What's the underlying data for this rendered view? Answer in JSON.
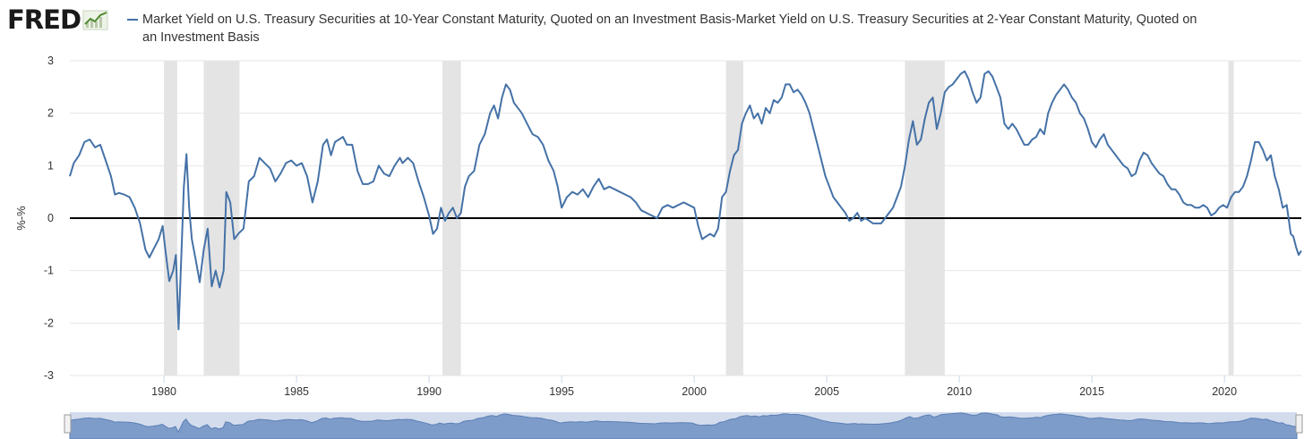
{
  "header": {
    "logo_text": "FRED",
    "logo_icon": "chart-line-icon",
    "legend_label": "Market Yield on U.S. Treasury Securities at 10-Year Constant Maturity, Quoted on an Investment Basis-Market Yield on U.S. Treasury Securities at 2-Year Constant Maturity, Quoted on an Investment Basis"
  },
  "colors": {
    "series": "#4572a7",
    "recession": "#e4e4e4",
    "zero_line": "#000000",
    "grid": "#e6e6e6",
    "navigator_fill": "#7e9cc9",
    "navigator_bg": "#d3dced"
  },
  "chart_data": {
    "type": "line",
    "title": "",
    "xlabel": "",
    "ylabel": "%-%",
    "xlim": [
      1976.45,
      2022.9
    ],
    "ylim": [
      -3,
      3
    ],
    "x_ticks": [
      "1980",
      "1985",
      "1990",
      "1995",
      "2000",
      "2005",
      "2010",
      "2015",
      "2020"
    ],
    "y_ticks": [
      "3",
      "2",
      "1",
      "0",
      "-1",
      "-2",
      "-3"
    ],
    "grid": "horizontal",
    "zero_line": true,
    "legend_position": "top",
    "recessions": [
      [
        1980.0,
        1980.5
      ],
      [
        1981.5,
        1982.85
      ],
      [
        1990.5,
        1991.2
      ],
      [
        2001.2,
        2001.85
      ],
      [
        2007.95,
        2009.45
      ],
      [
        2020.15,
        2020.35
      ]
    ],
    "series": [
      {
        "name": "Market Yield on U.S. Treasury Securities at 10-Year Constant Maturity, Quoted on an Investment Basis-Market Yield on U.S. Treasury Securities at 2-Year Constant Maturity, Quoted on an Investment Basis",
        "points": [
          [
            1976.45,
            0.8
          ],
          [
            1976.6,
            1.05
          ],
          [
            1976.8,
            1.2
          ],
          [
            1977.0,
            1.45
          ],
          [
            1977.2,
            1.5
          ],
          [
            1977.4,
            1.35
          ],
          [
            1977.6,
            1.4
          ],
          [
            1977.8,
            1.1
          ],
          [
            1978.0,
            0.8
          ],
          [
            1978.15,
            0.45
          ],
          [
            1978.3,
            0.48
          ],
          [
            1978.5,
            0.45
          ],
          [
            1978.7,
            0.4
          ],
          [
            1978.9,
            0.2
          ],
          [
            1979.1,
            -0.1
          ],
          [
            1979.3,
            -0.6
          ],
          [
            1979.45,
            -0.75
          ],
          [
            1979.6,
            -0.6
          ],
          [
            1979.8,
            -0.4
          ],
          [
            1979.95,
            -0.15
          ],
          [
            1980.05,
            -0.6
          ],
          [
            1980.2,
            -1.2
          ],
          [
            1980.35,
            -1.0
          ],
          [
            1980.45,
            -0.7
          ],
          [
            1980.55,
            -2.12
          ],
          [
            1980.65,
            -0.8
          ],
          [
            1980.75,
            0.6
          ],
          [
            1980.85,
            1.22
          ],
          [
            1980.95,
            0.2
          ],
          [
            1981.05,
            -0.4
          ],
          [
            1981.2,
            -0.8
          ],
          [
            1981.35,
            -1.22
          ],
          [
            1981.5,
            -0.6
          ],
          [
            1981.65,
            -0.2
          ],
          [
            1981.8,
            -1.3
          ],
          [
            1981.95,
            -1.0
          ],
          [
            1982.1,
            -1.32
          ],
          [
            1982.25,
            -1.0
          ],
          [
            1982.35,
            0.5
          ],
          [
            1982.5,
            0.3
          ],
          [
            1982.65,
            -0.4
          ],
          [
            1982.8,
            -0.3
          ],
          [
            1983.0,
            -0.2
          ],
          [
            1983.2,
            0.7
          ],
          [
            1983.4,
            0.8
          ],
          [
            1983.6,
            1.15
          ],
          [
            1983.8,
            1.05
          ],
          [
            1984.0,
            0.95
          ],
          [
            1984.2,
            0.7
          ],
          [
            1984.4,
            0.85
          ],
          [
            1984.6,
            1.05
          ],
          [
            1984.8,
            1.1
          ],
          [
            1985.0,
            1.0
          ],
          [
            1985.2,
            1.05
          ],
          [
            1985.4,
            0.8
          ],
          [
            1985.6,
            0.3
          ],
          [
            1985.8,
            0.7
          ],
          [
            1986.0,
            1.4
          ],
          [
            1986.15,
            1.5
          ],
          [
            1986.3,
            1.2
          ],
          [
            1986.45,
            1.45
          ],
          [
            1986.6,
            1.5
          ],
          [
            1986.75,
            1.55
          ],
          [
            1986.9,
            1.4
          ],
          [
            1987.1,
            1.4
          ],
          [
            1987.3,
            0.9
          ],
          [
            1987.5,
            0.65
          ],
          [
            1987.7,
            0.65
          ],
          [
            1987.9,
            0.7
          ],
          [
            1988.1,
            1.0
          ],
          [
            1988.3,
            0.85
          ],
          [
            1988.5,
            0.8
          ],
          [
            1988.7,
            1.0
          ],
          [
            1988.9,
            1.15
          ],
          [
            1989.0,
            1.05
          ],
          [
            1989.2,
            1.15
          ],
          [
            1989.4,
            1.05
          ],
          [
            1989.6,
            0.7
          ],
          [
            1989.8,
            0.4
          ],
          [
            1990.0,
            0.05
          ],
          [
            1990.15,
            -0.3
          ],
          [
            1990.3,
            -0.2
          ],
          [
            1990.45,
            0.2
          ],
          [
            1990.6,
            -0.05
          ],
          [
            1990.75,
            0.1
          ],
          [
            1990.9,
            0.2
          ],
          [
            1991.05,
            0.0
          ],
          [
            1991.2,
            0.1
          ],
          [
            1991.35,
            0.6
          ],
          [
            1991.5,
            0.8
          ],
          [
            1991.7,
            0.9
          ],
          [
            1991.9,
            1.4
          ],
          [
            1992.1,
            1.6
          ],
          [
            1992.3,
            2.0
          ],
          [
            1992.45,
            2.15
          ],
          [
            1992.6,
            1.9
          ],
          [
            1992.75,
            2.3
          ],
          [
            1992.9,
            2.55
          ],
          [
            1993.05,
            2.45
          ],
          [
            1993.2,
            2.2
          ],
          [
            1993.35,
            2.1
          ],
          [
            1993.5,
            2.0
          ],
          [
            1993.7,
            1.8
          ],
          [
            1993.9,
            1.6
          ],
          [
            1994.1,
            1.55
          ],
          [
            1994.3,
            1.4
          ],
          [
            1994.5,
            1.1
          ],
          [
            1994.7,
            0.9
          ],
          [
            1994.85,
            0.6
          ],
          [
            1995.0,
            0.2
          ],
          [
            1995.2,
            0.4
          ],
          [
            1995.4,
            0.5
          ],
          [
            1995.6,
            0.45
          ],
          [
            1995.8,
            0.55
          ],
          [
            1996.0,
            0.4
          ],
          [
            1996.2,
            0.6
          ],
          [
            1996.4,
            0.75
          ],
          [
            1996.6,
            0.55
          ],
          [
            1996.8,
            0.6
          ],
          [
            1997.0,
            0.55
          ],
          [
            1997.2,
            0.5
          ],
          [
            1997.4,
            0.45
          ],
          [
            1997.6,
            0.4
          ],
          [
            1997.8,
            0.3
          ],
          [
            1998.0,
            0.15
          ],
          [
            1998.2,
            0.1
          ],
          [
            1998.4,
            0.05
          ],
          [
            1998.6,
            0.0
          ],
          [
            1998.8,
            0.2
          ],
          [
            1999.0,
            0.25
          ],
          [
            1999.2,
            0.2
          ],
          [
            1999.4,
            0.25
          ],
          [
            1999.6,
            0.3
          ],
          [
            1999.8,
            0.25
          ],
          [
            2000.0,
            0.2
          ],
          [
            2000.15,
            -0.15
          ],
          [
            2000.3,
            -0.4
          ],
          [
            2000.45,
            -0.35
          ],
          [
            2000.6,
            -0.3
          ],
          [
            2000.75,
            -0.35
          ],
          [
            2000.9,
            -0.2
          ],
          [
            2001.05,
            0.4
          ],
          [
            2001.2,
            0.5
          ],
          [
            2001.35,
            0.9
          ],
          [
            2001.5,
            1.2
          ],
          [
            2001.65,
            1.3
          ],
          [
            2001.8,
            1.8
          ],
          [
            2001.95,
            2.0
          ],
          [
            2002.1,
            2.15
          ],
          [
            2002.25,
            1.9
          ],
          [
            2002.4,
            2.0
          ],
          [
            2002.55,
            1.8
          ],
          [
            2002.7,
            2.1
          ],
          [
            2002.85,
            2.0
          ],
          [
            2003.0,
            2.25
          ],
          [
            2003.15,
            2.2
          ],
          [
            2003.3,
            2.3
          ],
          [
            2003.45,
            2.55
          ],
          [
            2003.6,
            2.55
          ],
          [
            2003.75,
            2.4
          ],
          [
            2003.9,
            2.45
          ],
          [
            2004.05,
            2.35
          ],
          [
            2004.2,
            2.2
          ],
          [
            2004.35,
            2.0
          ],
          [
            2004.5,
            1.7
          ],
          [
            2004.65,
            1.4
          ],
          [
            2004.8,
            1.1
          ],
          [
            2004.95,
            0.8
          ],
          [
            2005.1,
            0.6
          ],
          [
            2005.25,
            0.4
          ],
          [
            2005.4,
            0.3
          ],
          [
            2005.55,
            0.2
          ],
          [
            2005.7,
            0.1
          ],
          [
            2005.85,
            -0.05
          ],
          [
            2006.0,
            0.0
          ],
          [
            2006.15,
            0.1
          ],
          [
            2006.3,
            -0.05
          ],
          [
            2006.45,
            0.0
          ],
          [
            2006.6,
            -0.05
          ],
          [
            2006.75,
            -0.1
          ],
          [
            2006.9,
            -0.1
          ],
          [
            2007.05,
            -0.1
          ],
          [
            2007.2,
            0.0
          ],
          [
            2007.35,
            0.1
          ],
          [
            2007.5,
            0.2
          ],
          [
            2007.65,
            0.4
          ],
          [
            2007.8,
            0.6
          ],
          [
            2007.95,
            1.0
          ],
          [
            2008.1,
            1.5
          ],
          [
            2008.25,
            1.85
          ],
          [
            2008.4,
            1.4
          ],
          [
            2008.55,
            1.5
          ],
          [
            2008.7,
            1.9
          ],
          [
            2008.85,
            2.2
          ],
          [
            2009.0,
            2.3
          ],
          [
            2009.15,
            1.7
          ],
          [
            2009.3,
            2.0
          ],
          [
            2009.45,
            2.4
          ],
          [
            2009.6,
            2.5
          ],
          [
            2009.75,
            2.55
          ],
          [
            2009.9,
            2.65
          ],
          [
            2010.05,
            2.75
          ],
          [
            2010.2,
            2.8
          ],
          [
            2010.35,
            2.65
          ],
          [
            2010.5,
            2.4
          ],
          [
            2010.65,
            2.2
          ],
          [
            2010.8,
            2.3
          ],
          [
            2010.95,
            2.75
          ],
          [
            2011.1,
            2.8
          ],
          [
            2011.25,
            2.7
          ],
          [
            2011.4,
            2.5
          ],
          [
            2011.55,
            2.3
          ],
          [
            2011.7,
            1.8
          ],
          [
            2011.85,
            1.7
          ],
          [
            2012.0,
            1.8
          ],
          [
            2012.15,
            1.7
          ],
          [
            2012.3,
            1.55
          ],
          [
            2012.45,
            1.4
          ],
          [
            2012.6,
            1.4
          ],
          [
            2012.75,
            1.5
          ],
          [
            2012.9,
            1.55
          ],
          [
            2013.05,
            1.7
          ],
          [
            2013.2,
            1.6
          ],
          [
            2013.35,
            2.0
          ],
          [
            2013.5,
            2.2
          ],
          [
            2013.65,
            2.35
          ],
          [
            2013.8,
            2.45
          ],
          [
            2013.95,
            2.55
          ],
          [
            2014.1,
            2.45
          ],
          [
            2014.25,
            2.3
          ],
          [
            2014.4,
            2.2
          ],
          [
            2014.55,
            2.0
          ],
          [
            2014.7,
            1.9
          ],
          [
            2014.85,
            1.7
          ],
          [
            2015.0,
            1.45
          ],
          [
            2015.15,
            1.35
          ],
          [
            2015.3,
            1.5
          ],
          [
            2015.45,
            1.6
          ],
          [
            2015.6,
            1.4
          ],
          [
            2015.75,
            1.3
          ],
          [
            2015.9,
            1.2
          ],
          [
            2016.05,
            1.1
          ],
          [
            2016.2,
            1.0
          ],
          [
            2016.35,
            0.95
          ],
          [
            2016.5,
            0.8
          ],
          [
            2016.65,
            0.85
          ],
          [
            2016.8,
            1.1
          ],
          [
            2016.95,
            1.25
          ],
          [
            2017.1,
            1.2
          ],
          [
            2017.25,
            1.05
          ],
          [
            2017.4,
            0.95
          ],
          [
            2017.55,
            0.85
          ],
          [
            2017.7,
            0.8
          ],
          [
            2017.85,
            0.65
          ],
          [
            2018.0,
            0.55
          ],
          [
            2018.15,
            0.55
          ],
          [
            2018.3,
            0.45
          ],
          [
            2018.45,
            0.3
          ],
          [
            2018.6,
            0.25
          ],
          [
            2018.75,
            0.25
          ],
          [
            2018.9,
            0.2
          ],
          [
            2019.05,
            0.2
          ],
          [
            2019.2,
            0.25
          ],
          [
            2019.35,
            0.2
          ],
          [
            2019.5,
            0.05
          ],
          [
            2019.65,
            0.1
          ],
          [
            2019.8,
            0.2
          ],
          [
            2019.95,
            0.25
          ],
          [
            2020.1,
            0.2
          ],
          [
            2020.25,
            0.4
          ],
          [
            2020.4,
            0.5
          ],
          [
            2020.55,
            0.5
          ],
          [
            2020.7,
            0.6
          ],
          [
            2020.85,
            0.8
          ],
          [
            2021.0,
            1.1
          ],
          [
            2021.15,
            1.45
          ],
          [
            2021.3,
            1.45
          ],
          [
            2021.45,
            1.3
          ],
          [
            2021.6,
            1.1
          ],
          [
            2021.75,
            1.2
          ],
          [
            2021.9,
            0.8
          ],
          [
            2022.05,
            0.55
          ],
          [
            2022.2,
            0.2
          ],
          [
            2022.35,
            0.25
          ],
          [
            2022.5,
            -0.3
          ],
          [
            2022.6,
            -0.35
          ],
          [
            2022.7,
            -0.55
          ],
          [
            2022.8,
            -0.7
          ],
          [
            2022.9,
            -0.62
          ]
        ]
      }
    ]
  }
}
